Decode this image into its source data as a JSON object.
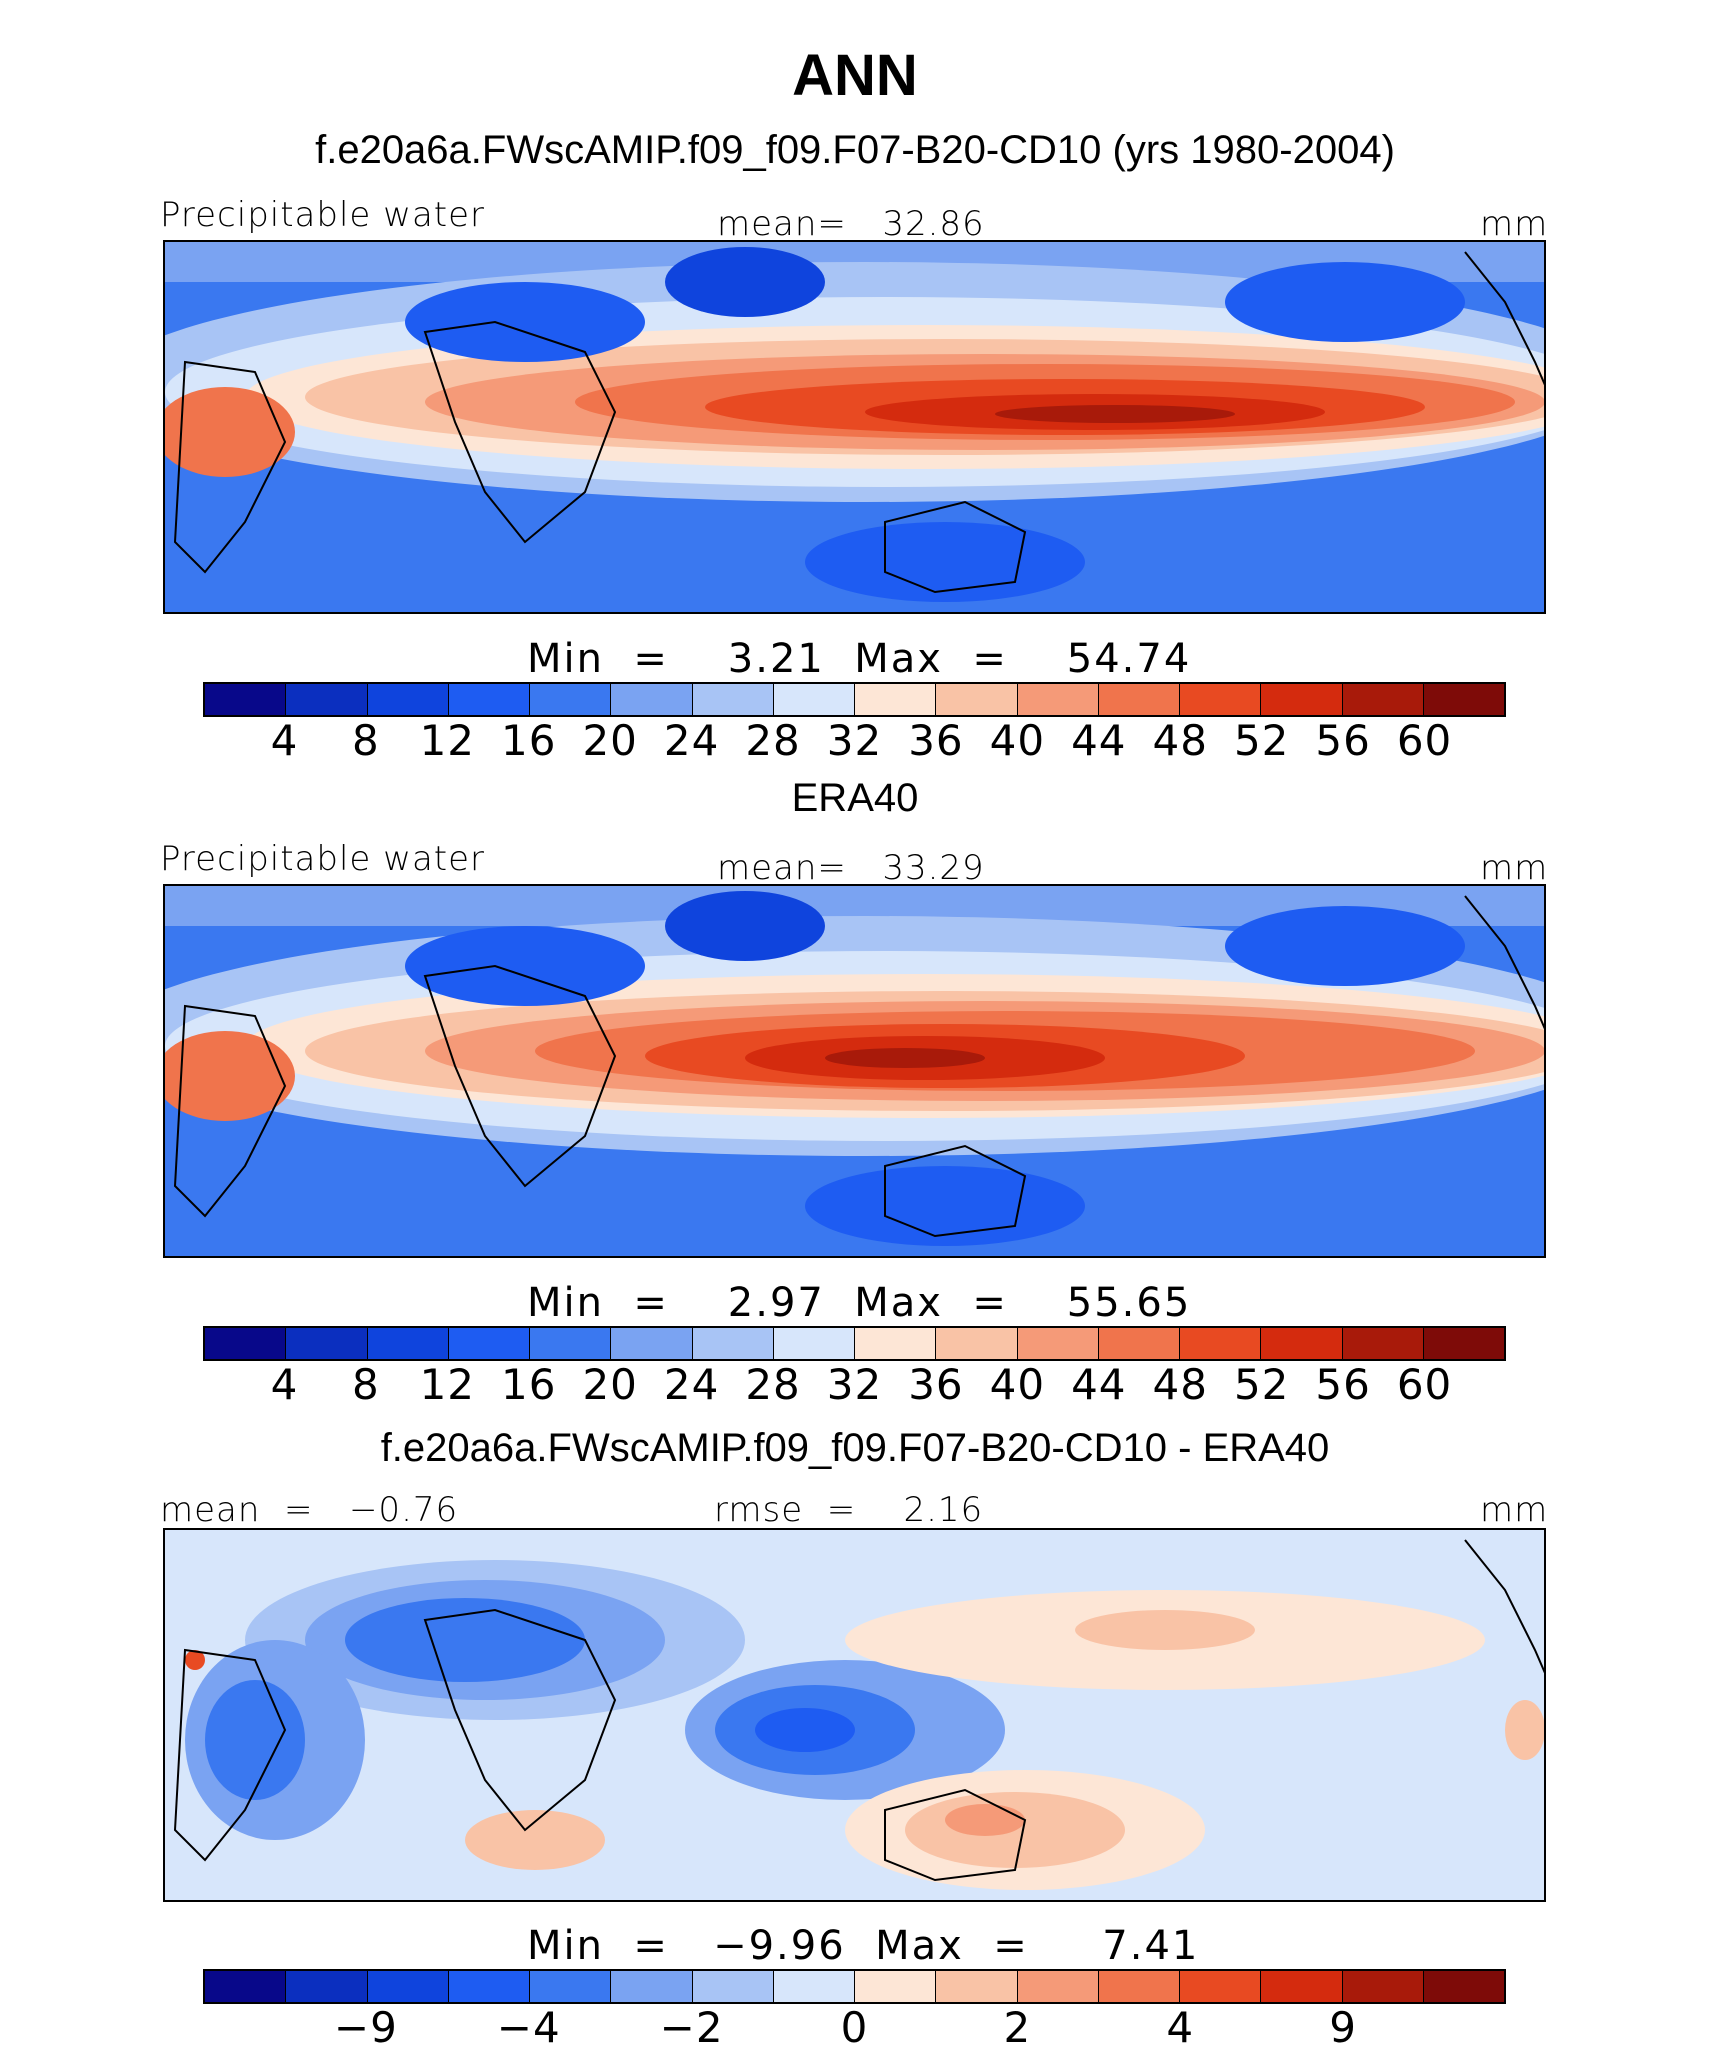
{
  "header": {
    "title": "ANN",
    "subtitle": "f.e20a6a.FWscAMIP.f09_f09.F07-B20-CD10 (yrs 1980-2004)"
  },
  "colors": {
    "seq": [
      "#08088a",
      "#0b2fbf",
      "#0f44dd",
      "#1e5cf2",
      "#3a78f0",
      "#7aa3f2",
      "#a8c4f5",
      "#d7e6fb",
      "#fde6d6",
      "#f9c3a6",
      "#f59a78",
      "#f0744c",
      "#e84a22",
      "#d42b0e",
      "#a81a0a",
      "#7e0b08"
    ],
    "coast": "#000000"
  },
  "panels": [
    {
      "title": "",
      "left_label": "Precipitable water",
      "center_label": "mean=   32.86",
      "units": "mm",
      "minmax": "Min  =    3.21  Max  =    54.74",
      "tick_labels": [
        "4",
        "8",
        "12",
        "16",
        "20",
        "24",
        "28",
        "32",
        "36",
        "40",
        "44",
        "48",
        "52",
        "56",
        "60"
      ]
    },
    {
      "title": "ERA40",
      "left_label": "Precipitable water",
      "center_label": "mean=   33.29",
      "units": "mm",
      "minmax": "Min  =    2.97  Max  =    55.65",
      "tick_labels": [
        "4",
        "8",
        "12",
        "16",
        "20",
        "24",
        "28",
        "32",
        "36",
        "40",
        "44",
        "48",
        "52",
        "56",
        "60"
      ]
    },
    {
      "title": "f.e20a6a.FWscAMIP.f09_f09.F07-B20-CD10 - ERA40",
      "left_label": "mean  =   −0.76",
      "center_label": "rmse  =    2.16",
      "units": "mm",
      "minmax": "Min  =   −9.96  Max  =     7.41",
      "tick_labels": [
        "−9",
        "−4",
        "−2",
        "0",
        "2",
        "4",
        "9"
      ]
    }
  ],
  "chart_data": [
    {
      "type": "heatmap",
      "title": "f.e20a6a.FWscAMIP.f09_f09.F07-B20-CD10 (yrs 1980-2004)",
      "variable": "Precipitable water",
      "units": "mm",
      "mean": 32.86,
      "min": 3.21,
      "max": 54.74,
      "contour_levels": [
        4,
        8,
        12,
        16,
        20,
        24,
        28,
        32,
        36,
        40,
        44,
        48,
        52,
        56,
        60
      ]
    },
    {
      "type": "heatmap",
      "title": "ERA40",
      "variable": "Precipitable water",
      "units": "mm",
      "mean": 33.29,
      "min": 2.97,
      "max": 55.65,
      "contour_levels": [
        4,
        8,
        12,
        16,
        20,
        24,
        28,
        32,
        36,
        40,
        44,
        48,
        52,
        56,
        60
      ]
    },
    {
      "type": "heatmap",
      "title": "f.e20a6a.FWscAMIP.f09_f09.F07-B20-CD10 - ERA40",
      "units": "mm",
      "mean": -0.76,
      "rmse": 2.16,
      "min": -9.96,
      "max": 7.41,
      "contour_levels": [
        -9,
        -6,
        -4,
        -3,
        -2,
        -1,
        0,
        1,
        2,
        3,
        4,
        6,
        9
      ]
    }
  ]
}
